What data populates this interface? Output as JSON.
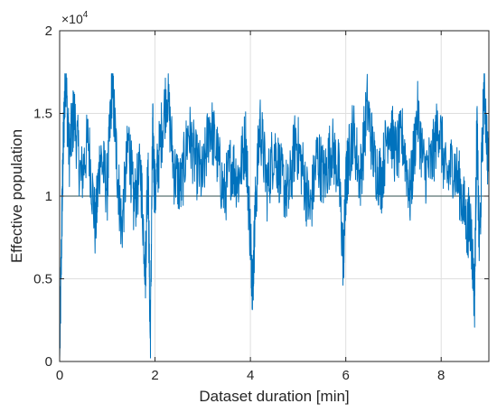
{
  "chart_data": {
    "type": "line",
    "title": "",
    "xlabel": "Dataset duration [min]",
    "ylabel": "Effective population",
    "xlim": [
      0,
      9
    ],
    "ylim": [
      0,
      20000
    ],
    "xticks": [
      0,
      2,
      4,
      6,
      8
    ],
    "xtick_labels": [
      "0",
      "2",
      "4",
      "6",
      "8"
    ],
    "yticks": [
      0,
      5000,
      10000,
      15000,
      20000
    ],
    "ytick_labels": [
      "0",
      "0.5",
      "1",
      "1.5",
      "2"
    ],
    "y_exponent_label": {
      "base": "×10",
      "power": "4"
    },
    "grid": true,
    "reference_line": {
      "y": 10000,
      "color": "#2f4f4f"
    },
    "series": [
      {
        "color": "#0072bd",
        "x": [
          0.0,
          0.05,
          0.08,
          0.12,
          0.2,
          0.3,
          0.45,
          0.6,
          0.75,
          0.85,
          1.0,
          1.1,
          1.2,
          1.3,
          1.45,
          1.55,
          1.7,
          1.8,
          1.85,
          1.9,
          1.95,
          2.0,
          2.1,
          2.25,
          2.4,
          2.55,
          2.7,
          2.85,
          3.0,
          3.15,
          3.3,
          3.45,
          3.6,
          3.75,
          3.9,
          4.0,
          4.05,
          4.1,
          4.2,
          4.35,
          4.5,
          4.65,
          4.8,
          4.95,
          5.1,
          5.25,
          5.4,
          5.55,
          5.7,
          5.85,
          5.95,
          6.0,
          6.05,
          6.15,
          6.3,
          6.45,
          6.6,
          6.75,
          6.9,
          7.05,
          7.2,
          7.35,
          7.5,
          7.65,
          7.8,
          7.95,
          8.1,
          8.25,
          8.4,
          8.55,
          8.6,
          8.7,
          8.75,
          8.8,
          8.9,
          9.0
        ],
        "y": [
          0,
          9000,
          13500,
          17500,
          12500,
          15000,
          11000,
          13500,
          8000,
          12500,
          10500,
          17000,
          12000,
          8000,
          13500,
          9500,
          11500,
          5500,
          12500,
          1000,
          14000,
          10000,
          13000,
          16500,
          11500,
          10500,
          14000,
          12000,
          11000,
          14500,
          12500,
          10000,
          12000,
          11000,
          13500,
          7500,
          4500,
          9000,
          14500,
          10500,
          13000,
          11000,
          10000,
          13500,
          11500,
          9000,
          12500,
          11000,
          13000,
          11500,
          6000,
          10500,
          12000,
          14000,
          11000,
          15500,
          12000,
          11000,
          14500,
          12500,
          13500,
          10000,
          15000,
          11500,
          12000,
          14500,
          11000,
          12000,
          10500,
          8000,
          9000,
          4000,
          14500,
          6500,
          17000,
          11000
        ]
      }
    ]
  }
}
